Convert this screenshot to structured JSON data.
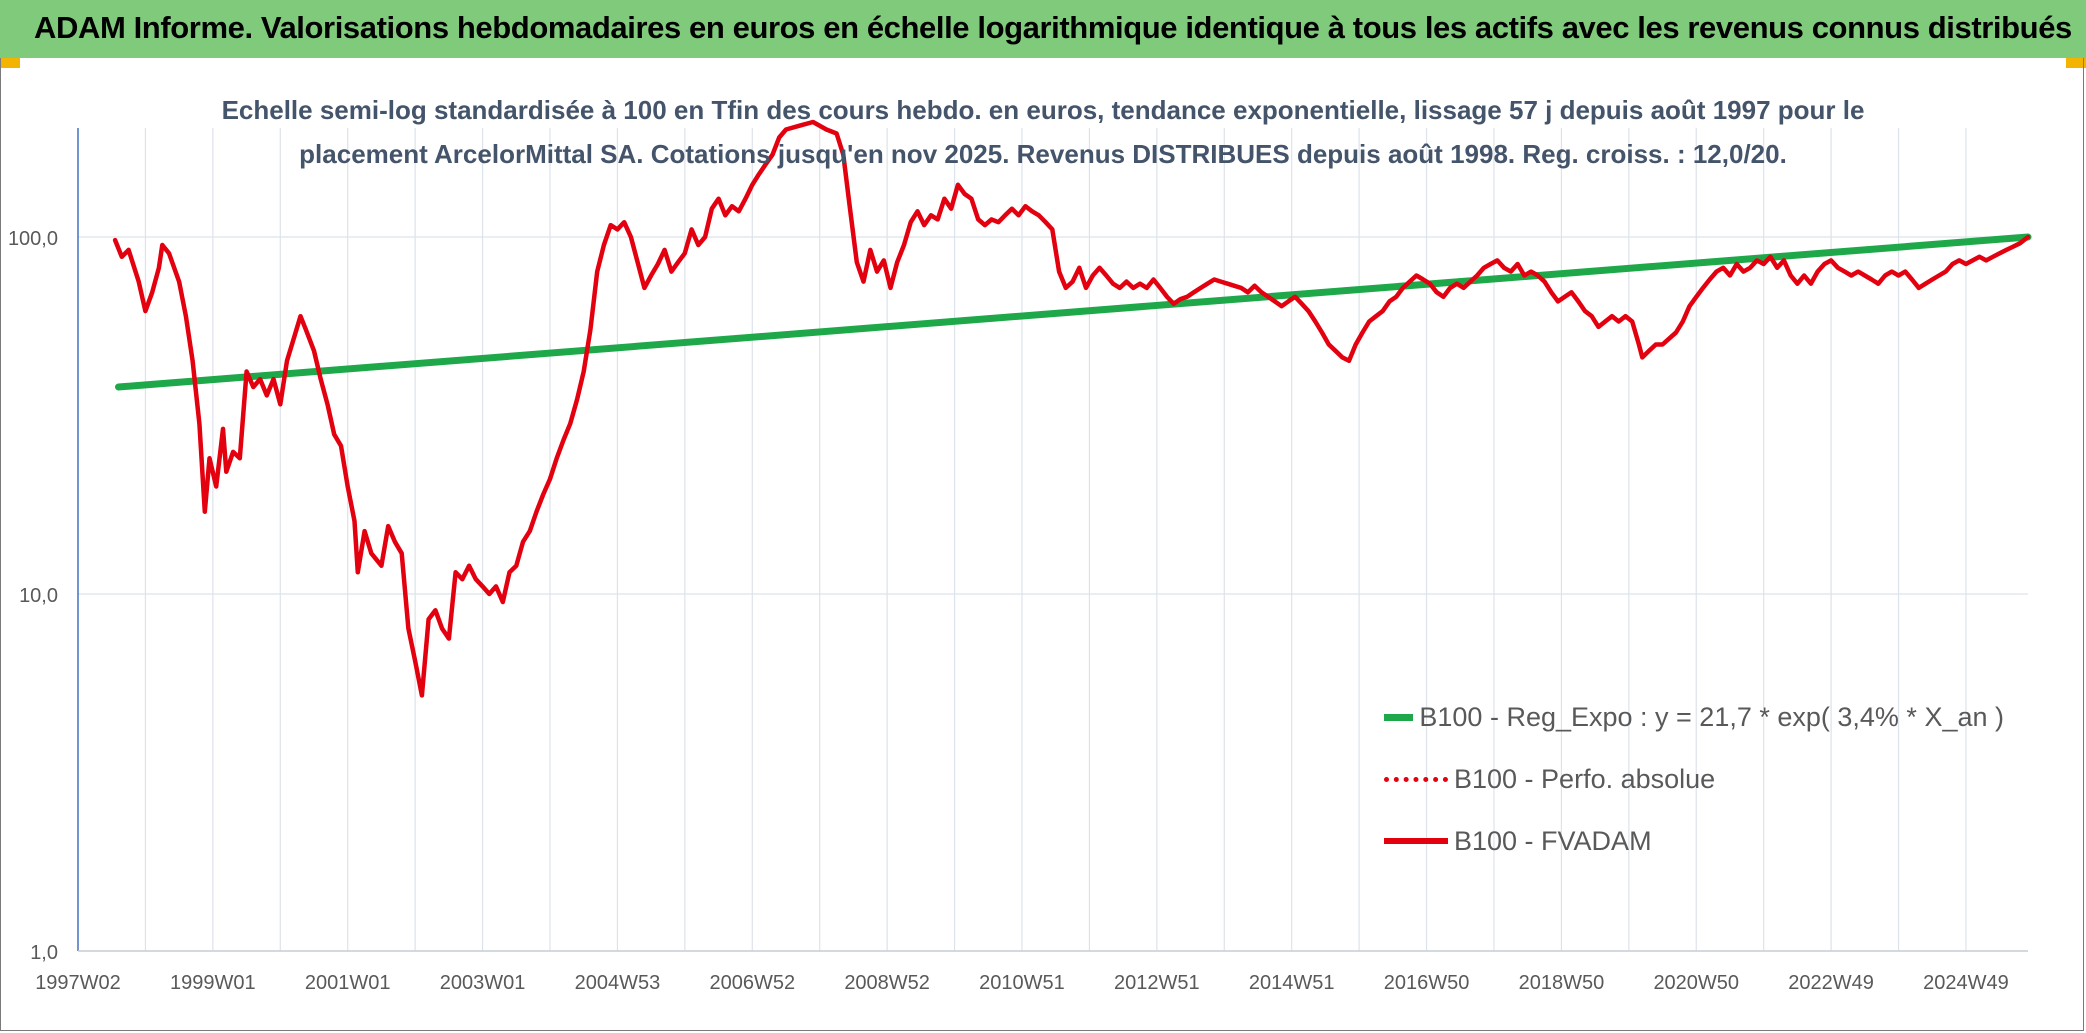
{
  "header": {
    "title": "ADAM Informe. Valorisations hebdomadaires en euros en échelle logarithmique identique à tous les actifs avec les revenus connus distribués"
  },
  "chart_data": {
    "type": "line",
    "title": "Echelle semi-log standardisée à 100 en Tfin des cours hebdo. en euros, tendance exponentielle, lissage 57 j depuis août 1997 pour le placement ArcelorMittal SA. Cotations jusqu'en nov 2025. Revenus DISTRIBUES depuis août 1998. Reg. croiss. : 12,0/20.",
    "title_lines": [
      "Echelle semi-log standardisée à 100 en Tfin des cours hebdo. en euros, tendance exponentielle, lissage 57 j depuis août 1997 pour le",
      "placement ArcelorMittal SA. Cotations jusqu'en nov 2025. Revenus DISTRIBUES depuis août 1998. Reg. croiss. : 12,0/20."
    ],
    "y_scale": "log",
    "ylim": [
      1,
      200
    ],
    "y_ticks": [
      {
        "value": 1,
        "label": "1,0"
      },
      {
        "value": 10,
        "label": "10,0"
      },
      {
        "value": 100,
        "label": "100,0"
      }
    ],
    "xlim": [
      1997.0,
      2025.92
    ],
    "x_ticks": [
      {
        "year": 1997.0,
        "label": "1997W02"
      },
      {
        "year": 1999.0,
        "label": "1999W01"
      },
      {
        "year": 2001.0,
        "label": "2001W01"
      },
      {
        "year": 2003.0,
        "label": "2003W01"
      },
      {
        "year": 2005.0,
        "label": "2004W53"
      },
      {
        "year": 2007.0,
        "label": "2006W52"
      },
      {
        "year": 2009.0,
        "label": "2008W52"
      },
      {
        "year": 2011.0,
        "label": "2010W51"
      },
      {
        "year": 2013.0,
        "label": "2012W51"
      },
      {
        "year": 2015.0,
        "label": "2014W51"
      },
      {
        "year": 2017.0,
        "label": "2016W50"
      },
      {
        "year": 2019.0,
        "label": "2018W50"
      },
      {
        "year": 2021.0,
        "label": "2020W50"
      },
      {
        "year": 2023.0,
        "label": "2022W49"
      },
      {
        "year": 2025.0,
        "label": "2024W49"
      }
    ],
    "grid": true,
    "legend_position": "bottom-right",
    "series": [
      {
        "name": "B100 - Reg_Expo : y = 21,7 * exp( 3,4% *  X_an )",
        "color": "#1fa84a",
        "style": "solid",
        "points": [
          [
            1997.6,
            38.0
          ],
          [
            2025.92,
            100.0
          ]
        ]
      },
      {
        "name": "B100 - Perfo. absolue",
        "color": "#e3000f",
        "style": "dotted",
        "points": []
      },
      {
        "name": "B100 - FVADAM",
        "color": "#e3000f",
        "style": "solid",
        "points": [
          [
            1997.55,
            98
          ],
          [
            1997.65,
            88
          ],
          [
            1997.75,
            92
          ],
          [
            1997.9,
            75
          ],
          [
            1998.0,
            62
          ],
          [
            1998.1,
            70
          ],
          [
            1998.2,
            82
          ],
          [
            1998.25,
            95
          ],
          [
            1998.35,
            90
          ],
          [
            1998.5,
            75
          ],
          [
            1998.6,
            60
          ],
          [
            1998.7,
            45
          ],
          [
            1998.8,
            30
          ],
          [
            1998.88,
            17
          ],
          [
            1998.95,
            24
          ],
          [
            1999.05,
            20
          ],
          [
            1999.15,
            29
          ],
          [
            1999.2,
            22
          ],
          [
            1999.3,
            25
          ],
          [
            1999.4,
            24
          ],
          [
            1999.5,
            42
          ],
          [
            1999.6,
            38
          ],
          [
            1999.7,
            40
          ],
          [
            1999.8,
            36
          ],
          [
            1999.9,
            40
          ],
          [
            2000.0,
            34
          ],
          [
            2000.1,
            45
          ],
          [
            2000.2,
            52
          ],
          [
            2000.3,
            60
          ],
          [
            2000.38,
            55
          ],
          [
            2000.5,
            48
          ],
          [
            2000.6,
            40
          ],
          [
            2000.7,
            34
          ],
          [
            2000.8,
            28
          ],
          [
            2000.9,
            26
          ],
          [
            2001.0,
            20
          ],
          [
            2001.1,
            16
          ],
          [
            2001.15,
            11.5
          ],
          [
            2001.25,
            15
          ],
          [
            2001.35,
            13
          ],
          [
            2001.5,
            12
          ],
          [
            2001.6,
            15.5
          ],
          [
            2001.7,
            14
          ],
          [
            2001.8,
            13
          ],
          [
            2001.9,
            8
          ],
          [
            2002.0,
            6.5
          ],
          [
            2002.1,
            5.2
          ],
          [
            2002.2,
            8.5
          ],
          [
            2002.3,
            9
          ],
          [
            2002.4,
            8
          ],
          [
            2002.5,
            7.5
          ],
          [
            2002.6,
            11.5
          ],
          [
            2002.7,
            11
          ],
          [
            2002.8,
            12
          ],
          [
            2002.9,
            11
          ],
          [
            2003.0,
            10.5
          ],
          [
            2003.1,
            10
          ],
          [
            2003.2,
            10.5
          ],
          [
            2003.3,
            9.5
          ],
          [
            2003.4,
            11.5
          ],
          [
            2003.5,
            12
          ],
          [
            2003.6,
            14
          ],
          [
            2003.7,
            15
          ],
          [
            2003.8,
            17
          ],
          [
            2003.9,
            19
          ],
          [
            2004.0,
            21
          ],
          [
            2004.1,
            24
          ],
          [
            2004.2,
            27
          ],
          [
            2004.3,
            30
          ],
          [
            2004.4,
            35
          ],
          [
            2004.5,
            42
          ],
          [
            2004.6,
            55
          ],
          [
            2004.7,
            80
          ],
          [
            2004.8,
            95
          ],
          [
            2004.9,
            108
          ],
          [
            2005.0,
            105
          ],
          [
            2005.1,
            110
          ],
          [
            2005.2,
            100
          ],
          [
            2005.3,
            85
          ],
          [
            2005.4,
            72
          ],
          [
            2005.5,
            78
          ],
          [
            2005.6,
            84
          ],
          [
            2005.7,
            92
          ],
          [
            2005.8,
            80
          ],
          [
            2005.9,
            85
          ],
          [
            2006.0,
            90
          ],
          [
            2006.1,
            105
          ],
          [
            2006.2,
            95
          ],
          [
            2006.3,
            100
          ],
          [
            2006.4,
            120
          ],
          [
            2006.5,
            128
          ],
          [
            2006.6,
            115
          ],
          [
            2006.7,
            122
          ],
          [
            2006.8,
            118
          ],
          [
            2006.9,
            128
          ],
          [
            2007.0,
            140
          ],
          [
            2007.1,
            150
          ],
          [
            2007.2,
            160
          ],
          [
            2007.3,
            170
          ],
          [
            2007.4,
            190
          ],
          [
            2007.5,
            200
          ],
          [
            2007.7,
            205
          ],
          [
            2007.9,
            210
          ],
          [
            2008.1,
            200
          ],
          [
            2008.25,
            195
          ],
          [
            2008.35,
            170
          ],
          [
            2008.45,
            120
          ],
          [
            2008.55,
            85
          ],
          [
            2008.65,
            75
          ],
          [
            2008.75,
            92
          ],
          [
            2008.85,
            80
          ],
          [
            2008.95,
            86
          ],
          [
            2009.05,
            72
          ],
          [
            2009.15,
            85
          ],
          [
            2009.25,
            95
          ],
          [
            2009.35,
            110
          ],
          [
            2009.45,
            118
          ],
          [
            2009.55,
            108
          ],
          [
            2009.65,
            115
          ],
          [
            2009.75,
            112
          ],
          [
            2009.85,
            128
          ],
          [
            2009.95,
            120
          ],
          [
            2010.05,
            140
          ],
          [
            2010.15,
            132
          ],
          [
            2010.25,
            128
          ],
          [
            2010.35,
            112
          ],
          [
            2010.45,
            108
          ],
          [
            2010.55,
            112
          ],
          [
            2010.65,
            110
          ],
          [
            2010.75,
            115
          ],
          [
            2010.85,
            120
          ],
          [
            2010.95,
            115
          ],
          [
            2011.05,
            122
          ],
          [
            2011.15,
            118
          ],
          [
            2011.25,
            115
          ],
          [
            2011.35,
            110
          ],
          [
            2011.45,
            105
          ],
          [
            2011.55,
            80
          ],
          [
            2011.65,
            72
          ],
          [
            2011.75,
            75
          ],
          [
            2011.85,
            82
          ],
          [
            2011.95,
            72
          ],
          [
            2012.05,
            78
          ],
          [
            2012.15,
            82
          ],
          [
            2012.25,
            78
          ],
          [
            2012.35,
            74
          ],
          [
            2012.45,
            72
          ],
          [
            2012.55,
            75
          ],
          [
            2012.65,
            72
          ],
          [
            2012.75,
            74
          ],
          [
            2012.85,
            72
          ],
          [
            2012.95,
            76
          ],
          [
            2013.05,
            72
          ],
          [
            2013.15,
            68
          ],
          [
            2013.25,
            65
          ],
          [
            2013.35,
            67
          ],
          [
            2013.45,
            68
          ],
          [
            2013.55,
            70
          ],
          [
            2013.65,
            72
          ],
          [
            2013.75,
            74
          ],
          [
            2013.85,
            76
          ],
          [
            2013.95,
            75
          ],
          [
            2014.05,
            74
          ],
          [
            2014.15,
            73
          ],
          [
            2014.25,
            72
          ],
          [
            2014.35,
            70
          ],
          [
            2014.45,
            73
          ],
          [
            2014.55,
            70
          ],
          [
            2014.65,
            68
          ],
          [
            2014.75,
            66
          ],
          [
            2014.85,
            64
          ],
          [
            2014.95,
            66
          ],
          [
            2015.05,
            68
          ],
          [
            2015.15,
            65
          ],
          [
            2015.25,
            62
          ],
          [
            2015.35,
            58
          ],
          [
            2015.45,
            54
          ],
          [
            2015.55,
            50
          ],
          [
            2015.65,
            48
          ],
          [
            2015.75,
            46
          ],
          [
            2015.85,
            45
          ],
          [
            2015.95,
            50
          ],
          [
            2016.05,
            54
          ],
          [
            2016.15,
            58
          ],
          [
            2016.25,
            60
          ],
          [
            2016.35,
            62
          ],
          [
            2016.45,
            66
          ],
          [
            2016.55,
            68
          ],
          [
            2016.65,
            72
          ],
          [
            2016.75,
            75
          ],
          [
            2016.85,
            78
          ],
          [
            2016.95,
            76
          ],
          [
            2017.05,
            74
          ],
          [
            2017.15,
            70
          ],
          [
            2017.25,
            68
          ],
          [
            2017.35,
            72
          ],
          [
            2017.45,
            74
          ],
          [
            2017.55,
            72
          ],
          [
            2017.65,
            75
          ],
          [
            2017.75,
            78
          ],
          [
            2017.85,
            82
          ],
          [
            2017.95,
            84
          ],
          [
            2018.05,
            86
          ],
          [
            2018.15,
            82
          ],
          [
            2018.25,
            80
          ],
          [
            2018.35,
            84
          ],
          [
            2018.45,
            78
          ],
          [
            2018.55,
            80
          ],
          [
            2018.65,
            78
          ],
          [
            2018.75,
            75
          ],
          [
            2018.85,
            70
          ],
          [
            2018.95,
            66
          ],
          [
            2019.05,
            68
          ],
          [
            2019.15,
            70
          ],
          [
            2019.25,
            66
          ],
          [
            2019.35,
            62
          ],
          [
            2019.45,
            60
          ],
          [
            2019.55,
            56
          ],
          [
            2019.65,
            58
          ],
          [
            2019.75,
            60
          ],
          [
            2019.85,
            58
          ],
          [
            2019.95,
            60
          ],
          [
            2020.05,
            58
          ],
          [
            2020.15,
            50
          ],
          [
            2020.2,
            46
          ],
          [
            2020.3,
            48
          ],
          [
            2020.4,
            50
          ],
          [
            2020.5,
            50
          ],
          [
            2020.6,
            52
          ],
          [
            2020.7,
            54
          ],
          [
            2020.8,
            58
          ],
          [
            2020.9,
            64
          ],
          [
            2021.0,
            68
          ],
          [
            2021.1,
            72
          ],
          [
            2021.2,
            76
          ],
          [
            2021.3,
            80
          ],
          [
            2021.4,
            82
          ],
          [
            2021.5,
            78
          ],
          [
            2021.6,
            84
          ],
          [
            2021.7,
            80
          ],
          [
            2021.8,
            82
          ],
          [
            2021.9,
            86
          ],
          [
            2022.0,
            84
          ],
          [
            2022.1,
            88
          ],
          [
            2022.2,
            82
          ],
          [
            2022.3,
            86
          ],
          [
            2022.4,
            78
          ],
          [
            2022.5,
            74
          ],
          [
            2022.6,
            78
          ],
          [
            2022.7,
            74
          ],
          [
            2022.8,
            80
          ],
          [
            2022.9,
            84
          ],
          [
            2023.0,
            86
          ],
          [
            2023.1,
            82
          ],
          [
            2023.2,
            80
          ],
          [
            2023.3,
            78
          ],
          [
            2023.4,
            80
          ],
          [
            2023.5,
            78
          ],
          [
            2023.6,
            76
          ],
          [
            2023.7,
            74
          ],
          [
            2023.8,
            78
          ],
          [
            2023.9,
            80
          ],
          [
            2024.0,
            78
          ],
          [
            2024.1,
            80
          ],
          [
            2024.2,
            76
          ],
          [
            2024.3,
            72
          ],
          [
            2024.4,
            74
          ],
          [
            2024.5,
            76
          ],
          [
            2024.6,
            78
          ],
          [
            2024.7,
            80
          ],
          [
            2024.8,
            84
          ],
          [
            2024.9,
            86
          ],
          [
            2025.0,
            84
          ],
          [
            2025.1,
            86
          ],
          [
            2025.2,
            88
          ],
          [
            2025.3,
            86
          ],
          [
            2025.4,
            88
          ],
          [
            2025.5,
            90
          ],
          [
            2025.6,
            92
          ],
          [
            2025.7,
            94
          ],
          [
            2025.8,
            96
          ],
          [
            2025.92,
            100
          ]
        ]
      }
    ]
  }
}
